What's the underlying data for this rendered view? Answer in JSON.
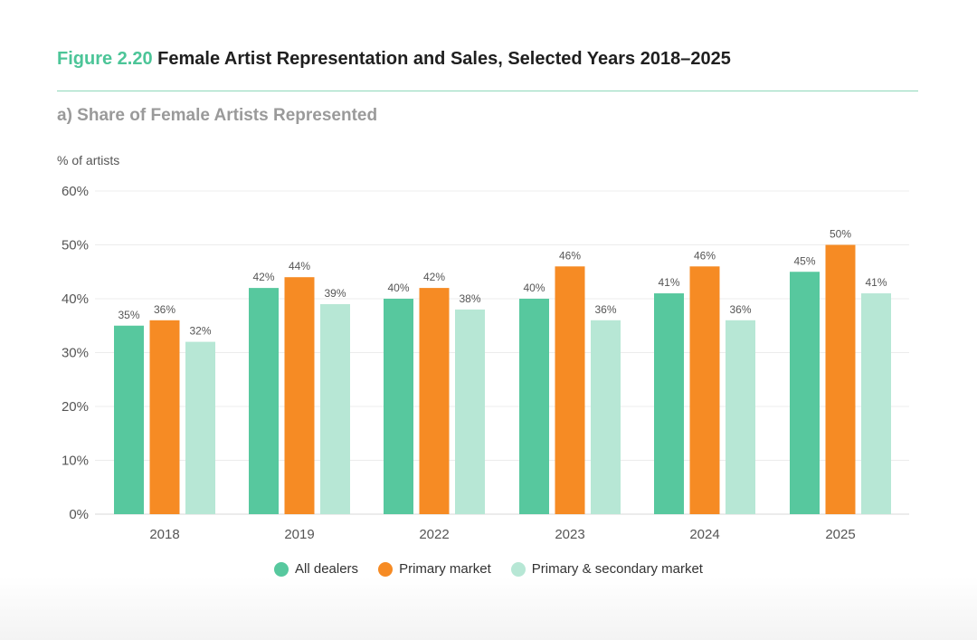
{
  "figure": {
    "number": "Figure 2.20",
    "title": "Female Artist Representation and Sales, Selected Years 2018–2025",
    "accent_color": "#4cc598"
  },
  "subtitle": "a) Share of Female Artists Represented",
  "unit_label": "% of artists",
  "chart_data": {
    "type": "bar",
    "title": "Share of Female Artists Represented",
    "ylabel": "% of artists",
    "xlabel": "",
    "ylim": [
      0,
      60
    ],
    "yticks": [
      0,
      10,
      20,
      30,
      40,
      50,
      60
    ],
    "ytick_labels": [
      "0%",
      "10%",
      "20%",
      "30%",
      "40%",
      "50%",
      "60%"
    ],
    "categories": [
      "2018",
      "2019",
      "2022",
      "2023",
      "2024",
      "2025"
    ],
    "series": [
      {
        "name": "All dealers",
        "color": "#57c89e",
        "values": [
          35,
          42,
          40,
          40,
          41,
          45
        ],
        "labels": [
          "35%",
          "42%",
          "40%",
          "40%",
          "41%",
          "45%"
        ]
      },
      {
        "name": "Primary market",
        "color": "#f68b24",
        "values": [
          36,
          44,
          42,
          46,
          46,
          50
        ],
        "labels": [
          "36%",
          "44%",
          "42%",
          "46%",
          "46%",
          "50%"
        ]
      },
      {
        "name": "Primary & secondary market",
        "color": "#b7e7d5",
        "values": [
          32,
          39,
          38,
          36,
          36,
          41
        ],
        "labels": [
          "32%",
          "39%",
          "38%",
          "36%",
          "36%",
          "41%"
        ]
      }
    ],
    "grid": true,
    "legend_position": "bottom-center"
  }
}
